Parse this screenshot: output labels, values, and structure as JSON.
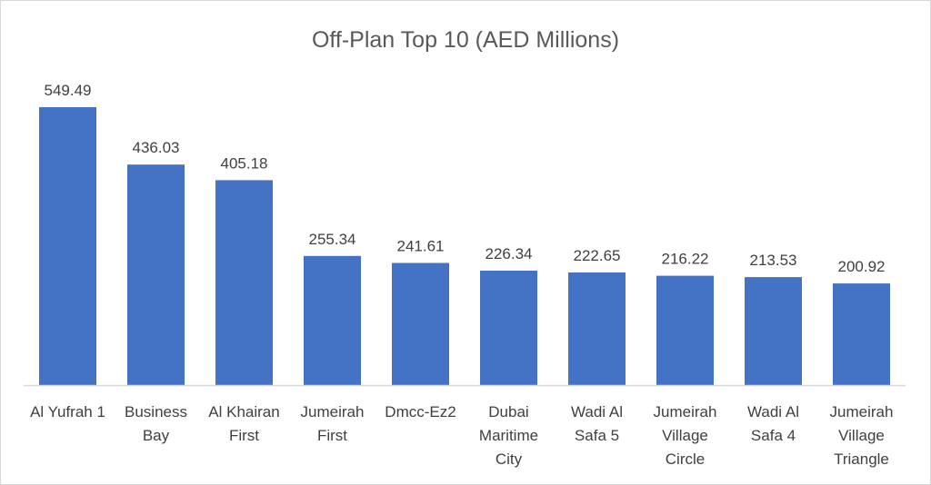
{
  "chart_data": {
    "type": "bar",
    "title": "Off-Plan Top 10 (AED Millions)",
    "xlabel": "",
    "ylabel": "",
    "categories": [
      "Al Yufrah 1",
      "Business Bay",
      "Al Khairan First",
      "Jumeirah First",
      "Dmcc-Ez2",
      "Dubai Maritime City",
      "Wadi Al Safa 5",
      "Jumeirah Village Circle",
      "Wadi Al Safa 4",
      "Jumeirah Village Triangle"
    ],
    "category_lines": [
      [
        "Al Yufrah 1"
      ],
      [
        "Business",
        "Bay"
      ],
      [
        "Al Khairan",
        "First"
      ],
      [
        "Jumeirah",
        "First"
      ],
      [
        "Dmcc-Ez2"
      ],
      [
        "Dubai",
        "Maritime",
        "City"
      ],
      [
        "Wadi Al",
        "Safa 5"
      ],
      [
        "Jumeirah",
        "Village",
        "Circle"
      ],
      [
        "Wadi Al",
        "Safa 4"
      ],
      [
        "Jumeirah",
        "Village",
        "Triangle"
      ]
    ],
    "values": [
      549.49,
      436.03,
      405.18,
      255.34,
      241.61,
      226.34,
      222.65,
      216.22,
      213.53,
      200.92
    ],
    "value_labels": [
      "549.49",
      "436.03",
      "405.18",
      "255.34",
      "241.61",
      "226.34",
      "222.65",
      "216.22",
      "213.53",
      "200.92"
    ],
    "ylim": [
      0,
      600
    ],
    "grid": false,
    "legend": "none",
    "bar_color": "#4472c4"
  }
}
